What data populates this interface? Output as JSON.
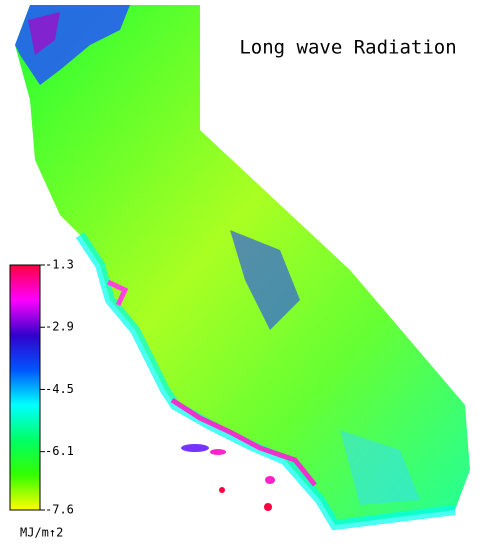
{
  "title": "Long wave Radiation",
  "colorbar": {
    "range": [
      -7.6,
      -1.3
    ],
    "ticks": [
      -1.3,
      -2.9,
      -4.5,
      -6.1,
      -7.6
    ],
    "unit": "MJ/m↑2",
    "colors": [
      "#ffff00",
      "#33ff00",
      "#00ff66",
      "#00ffff",
      "#0055ff",
      "#3300cc",
      "#ff00ff",
      "#ff0040"
    ]
  }
}
